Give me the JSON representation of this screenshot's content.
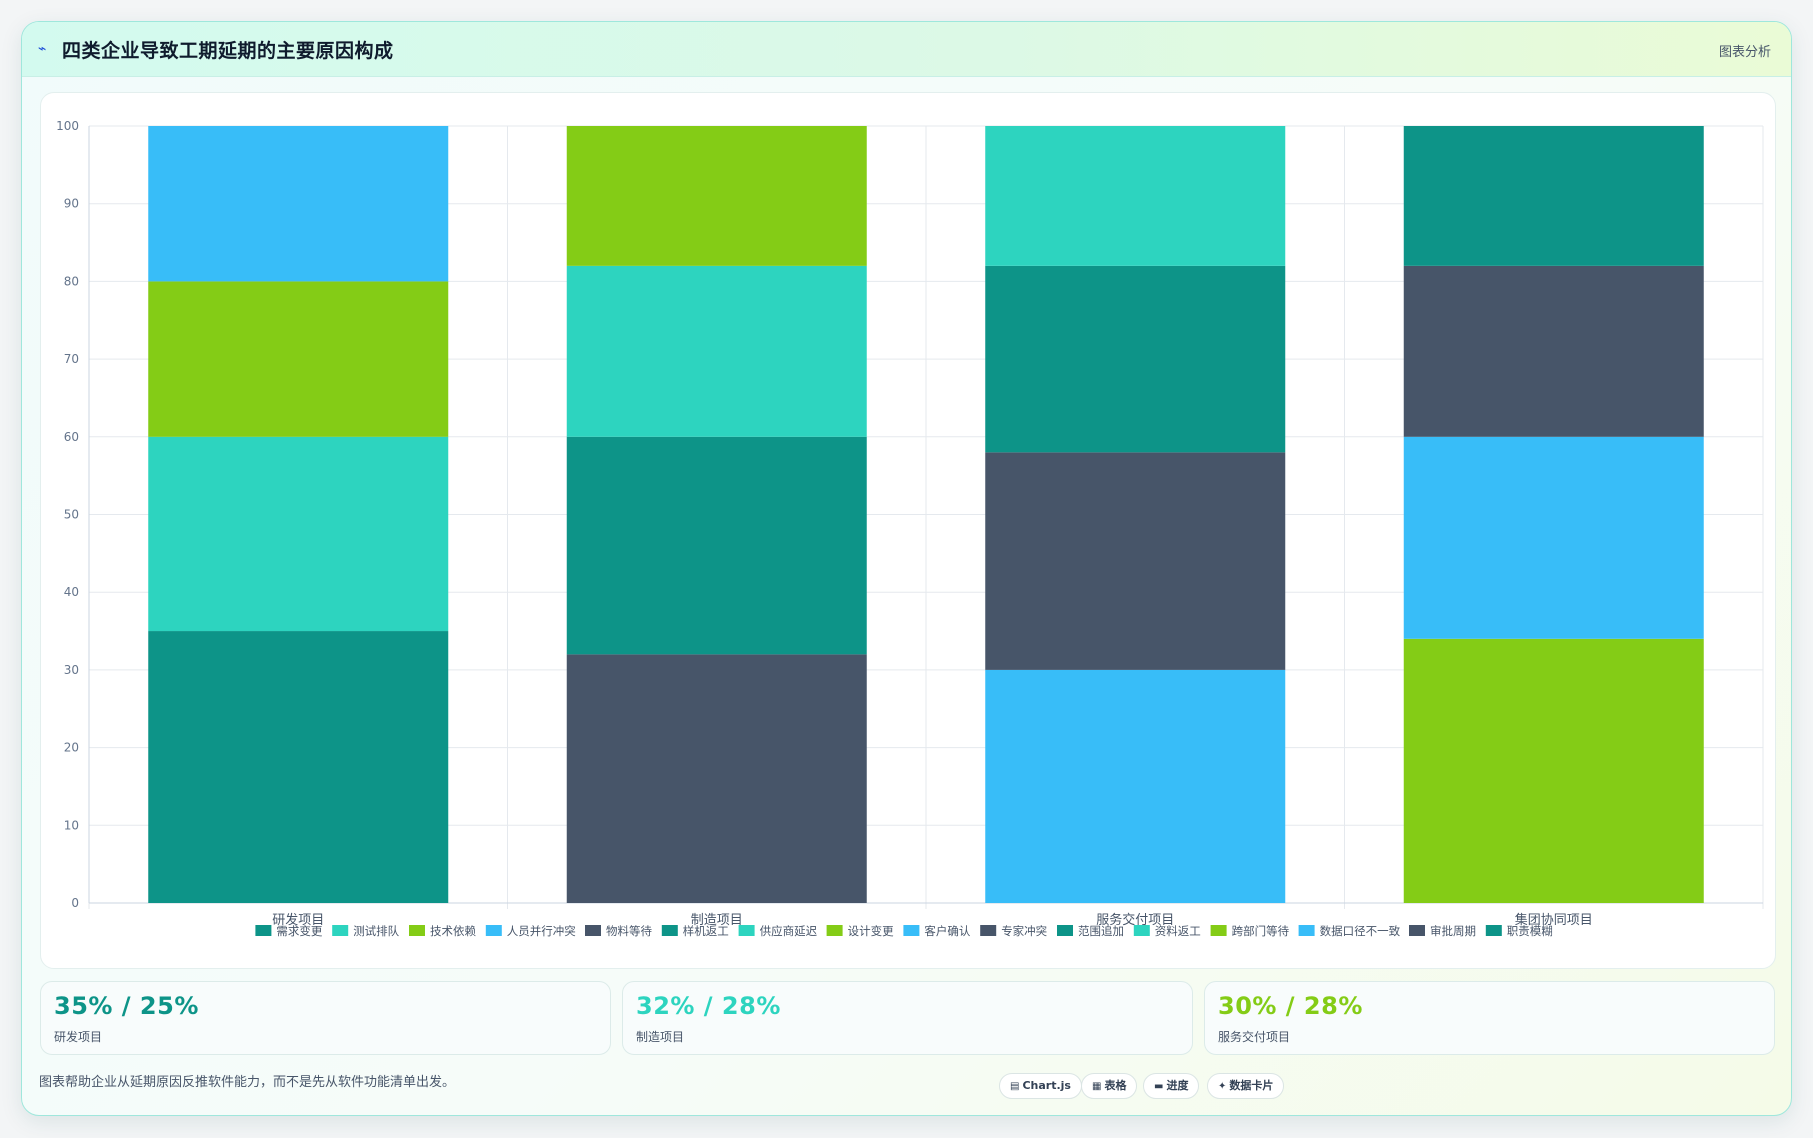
{
  "header": {
    "title": "四类企业导致工期延期的主要原因构成",
    "link": "图表分析"
  },
  "chart_data": {
    "type": "bar",
    "stacked": true,
    "categories": [
      "研发项目",
      "制造项目",
      "服务交付项目",
      "集团协同项目"
    ],
    "ylim": [
      0,
      100
    ],
    "yticks": [
      0,
      10,
      20,
      30,
      40,
      50,
      60,
      70,
      80,
      90,
      100
    ],
    "grid": true,
    "legend_position": "bottom",
    "series": [
      {
        "name": "需求变更",
        "color": "#0d9488",
        "values": [
          35,
          null,
          null,
          null
        ]
      },
      {
        "name": "测试排队",
        "color": "#2dd4bf",
        "values": [
          25,
          null,
          null,
          null
        ]
      },
      {
        "name": "技术依赖",
        "color": "#84cc16",
        "values": [
          20,
          null,
          null,
          null
        ]
      },
      {
        "name": "人员并行冲突",
        "color": "#38bdf8",
        "values": [
          20,
          null,
          null,
          null
        ]
      },
      {
        "name": "物料等待",
        "color": "#475569",
        "values": [
          null,
          32,
          null,
          null
        ]
      },
      {
        "name": "样机返工",
        "color": "#0d9488",
        "values": [
          null,
          28,
          null,
          null
        ]
      },
      {
        "name": "供应商延迟",
        "color": "#2dd4bf",
        "values": [
          null,
          22,
          null,
          null
        ]
      },
      {
        "name": "设计变更",
        "color": "#84cc16",
        "values": [
          null,
          18,
          null,
          null
        ]
      },
      {
        "name": "客户确认",
        "color": "#38bdf8",
        "values": [
          null,
          null,
          30,
          null
        ]
      },
      {
        "name": "专家冲突",
        "color": "#475569",
        "values": [
          null,
          null,
          28,
          null
        ]
      },
      {
        "name": "范围追加",
        "color": "#0d9488",
        "values": [
          null,
          null,
          24,
          null
        ]
      },
      {
        "name": "资料返工",
        "color": "#2dd4bf",
        "values": [
          null,
          null,
          18,
          null
        ]
      },
      {
        "name": "跨部门等待",
        "color": "#84cc16",
        "values": [
          null,
          null,
          null,
          34
        ]
      },
      {
        "name": "数据口径不一致",
        "color": "#38bdf8",
        "values": [
          null,
          null,
          null,
          26
        ]
      },
      {
        "name": "审批周期",
        "color": "#475569",
        "values": [
          null,
          null,
          null,
          22
        ]
      },
      {
        "name": "职责模糊",
        "color": "#0d9488",
        "values": [
          null,
          null,
          null,
          18
        ]
      }
    ]
  },
  "kpis": [
    {
      "value": "35% / 25%",
      "label": "研发项目",
      "color": "#0d9488"
    },
    {
      "value": "32% / 28%",
      "label": "制造项目",
      "color": "#2dd4bf"
    },
    {
      "value": "30% / 28%",
      "label": "服务交付项目",
      "color": "#84cc16"
    }
  ],
  "footer": {
    "note": "图表帮助企业从延期原因反推软件能力，而不是先从软件功能清单出发。",
    "chips": [
      {
        "icon": "chart-icon",
        "glyph": "▤",
        "label": "Chart.js"
      },
      {
        "icon": "table-icon",
        "glyph": "▦",
        "label": "表格"
      },
      {
        "icon": "progress-icon",
        "glyph": "▬",
        "label": "进度"
      },
      {
        "icon": "card-icon",
        "glyph": "✦",
        "label": "数据卡片"
      }
    ]
  }
}
